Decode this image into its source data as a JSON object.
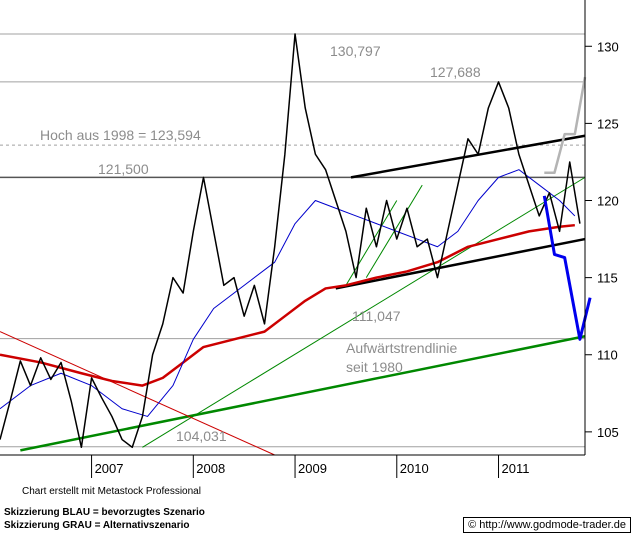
{
  "chart_data": {
    "type": "line",
    "title": "",
    "xlabel": "",
    "ylabel": "",
    "x_ticks": [
      "2007",
      "2008",
      "2009",
      "2010",
      "2011"
    ],
    "y_ticks": [
      105,
      110,
      115,
      120,
      125,
      130
    ],
    "ylim": [
      103.5,
      133
    ],
    "x_range": [
      2006.1,
      2011.85
    ],
    "grid": "vertical year gridlines",
    "annotations": {
      "level_130": "130,797",
      "level_127": "127,688",
      "hoch_1998": "Hoch aus 1998 = 123,594",
      "level_121": "121,500",
      "level_111": "111,047",
      "trendline_1": "Aufwärtstrendlinie",
      "trendline_2": "seit 1980",
      "level_104": "104,031"
    },
    "levels": [
      {
        "name": "level_130",
        "value": 130.797,
        "style": "solid-gray"
      },
      {
        "name": "level_127",
        "value": 127.688,
        "style": "solid-gray"
      },
      {
        "name": "hoch_1998",
        "value": 123.594,
        "style": "dashed-gray"
      },
      {
        "name": "level_121",
        "value": 121.5,
        "style": "solid-dark"
      },
      {
        "name": "level_111",
        "value": 111.047,
        "style": "solid-gray"
      },
      {
        "name": "level_104",
        "value": 104.031,
        "style": "solid-gray"
      }
    ],
    "price": {
      "color": "#000000",
      "points": [
        [
          2006.1,
          104.5
        ],
        [
          2006.2,
          107.0
        ],
        [
          2006.3,
          109.6
        ],
        [
          2006.4,
          108.0
        ],
        [
          2006.5,
          109.8
        ],
        [
          2006.6,
          108.4
        ],
        [
          2006.7,
          109.5
        ],
        [
          2006.8,
          107.0
        ],
        [
          2006.9,
          104.0
        ],
        [
          2007.0,
          108.5
        ],
        [
          2007.1,
          107.2
        ],
        [
          2007.2,
          106.0
        ],
        [
          2007.3,
          104.5
        ],
        [
          2007.4,
          104.0
        ],
        [
          2007.5,
          106.0
        ],
        [
          2007.6,
          110.0
        ],
        [
          2007.7,
          112.0
        ],
        [
          2007.8,
          115.0
        ],
        [
          2007.9,
          114.0
        ],
        [
          2008.0,
          118.0
        ],
        [
          2008.1,
          121.5
        ],
        [
          2008.2,
          118.0
        ],
        [
          2008.3,
          114.5
        ],
        [
          2008.4,
          115.0
        ],
        [
          2008.5,
          112.5
        ],
        [
          2008.6,
          114.5
        ],
        [
          2008.7,
          112.0
        ],
        [
          2008.8,
          117.0
        ],
        [
          2008.9,
          123.0
        ],
        [
          2009.0,
          130.797
        ],
        [
          2009.1,
          126.0
        ],
        [
          2009.2,
          123.0
        ],
        [
          2009.3,
          122.0
        ],
        [
          2009.4,
          120.0
        ],
        [
          2009.5,
          118.0
        ],
        [
          2009.6,
          115.0
        ],
        [
          2009.7,
          119.5
        ],
        [
          2009.8,
          117.0
        ],
        [
          2009.9,
          120.0
        ],
        [
          2010.0,
          117.5
        ],
        [
          2010.1,
          119.5
        ],
        [
          2010.2,
          117.0
        ],
        [
          2010.3,
          117.5
        ],
        [
          2010.4,
          115.0
        ],
        [
          2010.5,
          118.0
        ],
        [
          2010.6,
          121.0
        ],
        [
          2010.7,
          124.0
        ],
        [
          2010.8,
          123.0
        ],
        [
          2010.9,
          126.0
        ],
        [
          2011.0,
          127.688
        ],
        [
          2011.1,
          126.0
        ],
        [
          2011.2,
          123.0
        ],
        [
          2011.3,
          121.0
        ],
        [
          2011.4,
          119.0
        ],
        [
          2011.5,
          120.5
        ],
        [
          2011.6,
          118.0
        ],
        [
          2011.7,
          122.5
        ],
        [
          2011.8,
          118.5
        ]
      ]
    },
    "moving_average_blue": {
      "color": "#0000cc",
      "points": [
        [
          2006.1,
          106.5
        ],
        [
          2006.4,
          108.0
        ],
        [
          2006.7,
          108.8
        ],
        [
          2007.0,
          108.0
        ],
        [
          2007.3,
          106.5
        ],
        [
          2007.55,
          106.0
        ],
        [
          2007.8,
          108.0
        ],
        [
          2008.0,
          111.0
        ],
        [
          2008.2,
          113.0
        ],
        [
          2008.5,
          114.5
        ],
        [
          2008.8,
          116.0
        ],
        [
          2009.0,
          118.5
        ],
        [
          2009.2,
          120.0
        ],
        [
          2009.4,
          119.5
        ],
        [
          2009.6,
          119.0
        ],
        [
          2009.8,
          118.5
        ],
        [
          2010.0,
          118.0
        ],
        [
          2010.2,
          117.5
        ],
        [
          2010.4,
          117.0
        ],
        [
          2010.6,
          118.0
        ],
        [
          2010.8,
          120.0
        ],
        [
          2011.0,
          121.5
        ],
        [
          2011.2,
          122.0
        ],
        [
          2011.4,
          121.0
        ],
        [
          2011.6,
          120.0
        ],
        [
          2011.75,
          119.0
        ]
      ]
    },
    "moving_average_red": {
      "color": "#cc0000",
      "points": [
        [
          2006.1,
          110.0
        ],
        [
          2006.5,
          109.5
        ],
        [
          2006.9,
          108.8
        ],
        [
          2007.2,
          108.3
        ],
        [
          2007.5,
          108.0
        ],
        [
          2007.7,
          108.5
        ],
        [
          2007.9,
          109.5
        ],
        [
          2008.1,
          110.5
        ],
        [
          2008.4,
          111.0
        ],
        [
          2008.7,
          111.5
        ],
        [
          2008.9,
          112.5
        ],
        [
          2009.1,
          113.5
        ],
        [
          2009.3,
          114.3
        ],
        [
          2009.5,
          114.5
        ],
        [
          2009.8,
          115.0
        ],
        [
          2010.1,
          115.4
        ],
        [
          2010.4,
          116.0
        ],
        [
          2010.7,
          117.0
        ],
        [
          2011.0,
          117.5
        ],
        [
          2011.3,
          118.0
        ],
        [
          2011.6,
          118.3
        ],
        [
          2011.75,
          118.4
        ]
      ]
    },
    "trendlines": [
      {
        "name": "aufwaertstrend_1980",
        "color": "#008800",
        "width": 2.5,
        "from": [
          2006.3,
          103.8
        ],
        "to": [
          2011.85,
          111.2
        ]
      },
      {
        "name": "green_thin",
        "color": "#008800",
        "width": 1,
        "from": [
          2007.5,
          104.0
        ],
        "to": [
          2011.85,
          121.5
        ]
      },
      {
        "name": "green_channel_a",
        "color": "#008800",
        "width": 1,
        "from": [
          2009.5,
          114.5
        ],
        "to": [
          2010.0,
          120.0
        ]
      },
      {
        "name": "green_channel_b",
        "color": "#008800",
        "width": 1,
        "from": [
          2009.7,
          115.0
        ],
        "to": [
          2010.25,
          121.0
        ]
      },
      {
        "name": "red_downtrend",
        "color": "#cc0000",
        "width": 1,
        "from": [
          2006.1,
          111.5
        ],
        "to": [
          2008.8,
          103.5
        ]
      },
      {
        "name": "channel_upper",
        "color": "#000000",
        "width": 2.5,
        "from": [
          2009.55,
          121.5
        ],
        "to": [
          2011.85,
          124.2
        ]
      },
      {
        "name": "channel_lower",
        "color": "#000000",
        "width": 2.5,
        "from": [
          2009.4,
          114.3
        ],
        "to": [
          2011.85,
          117.5
        ]
      }
    ],
    "scenario_blue": {
      "color": "#0000ee",
      "points": [
        [
          2011.45,
          120.3
        ],
        [
          2011.55,
          116.5
        ],
        [
          2011.65,
          116.3
        ],
        [
          2011.8,
          111.0
        ],
        [
          2011.9,
          113.7
        ]
      ]
    },
    "scenario_gray": {
      "color": "#b4b4b4",
      "points": [
        [
          2011.45,
          121.8
        ],
        [
          2011.55,
          121.8
        ],
        [
          2011.65,
          124.3
        ],
        [
          2011.75,
          124.3
        ],
        [
          2011.85,
          128.0
        ]
      ]
    }
  },
  "footer": {
    "credit": "Chart erstellt mit Metastock Professional",
    "scenario_blue_note": "Skizzierung BLAU = bevorzugtes Szenario",
    "scenario_gray_note": "Skizzierung GRAU = Alternativszenario",
    "copyright_symbol": "©",
    "url": "http://www.godmode-trader.de"
  }
}
